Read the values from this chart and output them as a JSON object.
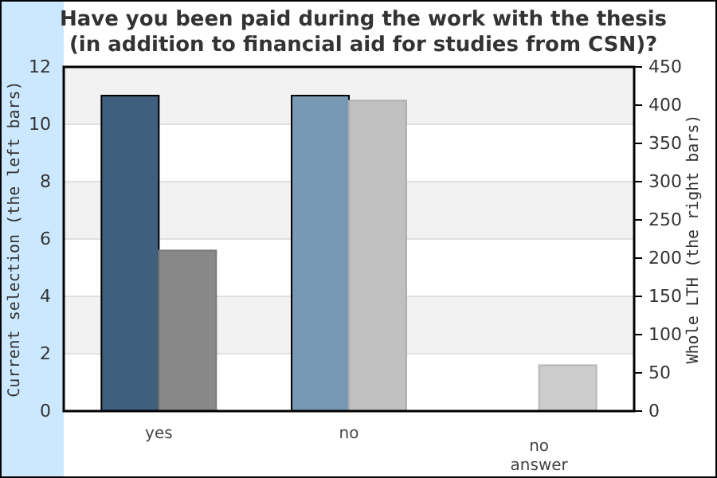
{
  "chart_data": {
    "type": "bar",
    "title": "Have you been paid during the work with the thesis\n(in addition to financial aid for studies from CSN)?",
    "ylabel": "Current selection (the left bars)",
    "y2label": "Whole LTH (the right bars)",
    "categories": [
      "yes",
      "no",
      "no answer"
    ],
    "series": [
      {
        "axis": "y",
        "colors": [
          "#3f5f7f",
          "#7799b3",
          "#7799b3"
        ],
        "values": [
          11,
          11,
          0
        ]
      },
      {
        "axis": "y2",
        "colors": [
          "#888888",
          "#c0c0c0",
          "#cccccc"
        ],
        "values": [
          210,
          406,
          60
        ]
      }
    ],
    "ylim": [
      0,
      12
    ],
    "yticks": [
      0,
      2,
      4,
      6,
      8,
      10,
      12
    ],
    "y2lim": [
      0,
      450
    ],
    "y2ticks": [
      0,
      50,
      100,
      150,
      200,
      250,
      300,
      350,
      400,
      450
    ],
    "grid": "y"
  }
}
